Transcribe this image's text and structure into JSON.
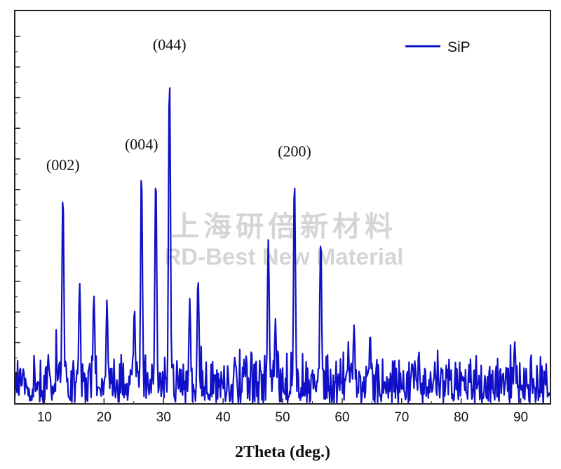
{
  "chart_data": {
    "type": "line",
    "xlabel": "2Theta (deg.)",
    "ylabel": "",
    "xlim": [
      5,
      95
    ],
    "ylim": [
      0,
      100
    ],
    "x_ticks": [
      10,
      20,
      30,
      40,
      50,
      60,
      70,
      80,
      90
    ],
    "y_tick_labels": "none",
    "legend": {
      "position": "top-right",
      "entries": [
        "SiP"
      ]
    },
    "series": [
      {
        "name": "SiP",
        "color": "#1010c8",
        "peaks": [
          {
            "x": 13.1,
            "y": 65
          },
          {
            "x": 15.9,
            "y": 38
          },
          {
            "x": 18.3,
            "y": 34
          },
          {
            "x": 20.5,
            "y": 31
          },
          {
            "x": 25.1,
            "y": 29
          },
          {
            "x": 26.3,
            "y": 71
          },
          {
            "x": 28.7,
            "y": 70
          },
          {
            "x": 31.0,
            "y": 100
          },
          {
            "x": 34.4,
            "y": 31
          },
          {
            "x": 35.8,
            "y": 39
          },
          {
            "x": 47.6,
            "y": 49
          },
          {
            "x": 48.8,
            "y": 25
          },
          {
            "x": 52.0,
            "y": 69
          },
          {
            "x": 56.4,
            "y": 51
          },
          {
            "x": 62.0,
            "y": 23
          },
          {
            "x": 64.7,
            "y": 21
          },
          {
            "x": 89.0,
            "y": 19
          }
        ],
        "background_noise_max": 16
      }
    ],
    "annotations": [
      {
        "text": "(002)",
        "x": 13.1
      },
      {
        "text": "(004)",
        "x": 26.3
      },
      {
        "text": "(044)",
        "x": 31.0
      },
      {
        "text": "(200)",
        "x": 52.0
      }
    ],
    "grid": false
  },
  "watermark": {
    "line1": "上海研倍新材料",
    "line2": "RD-Best New Material"
  }
}
